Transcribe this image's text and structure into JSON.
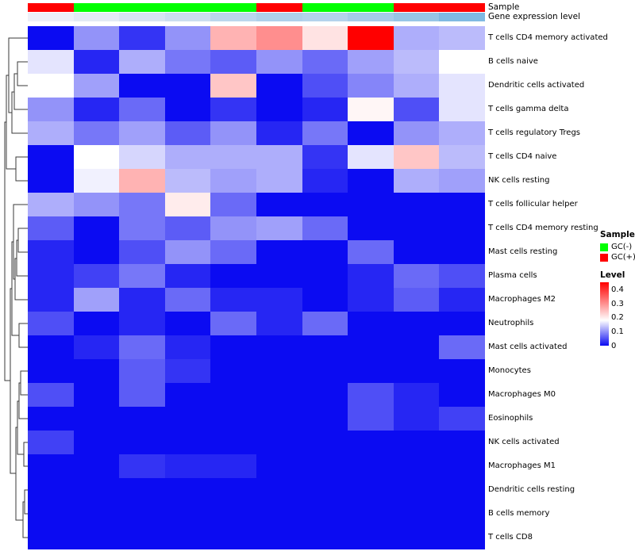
{
  "figure": {
    "annotation_labels": {
      "sample": "Sample",
      "expression": "Gene expression level"
    }
  },
  "legend": {
    "sample": {
      "title": "Sample",
      "items": [
        {
          "label": "GC(-)",
          "color": "#00FF00"
        },
        {
          "label": "GC(+)",
          "color": "#FF0000"
        }
      ]
    },
    "level": {
      "title": "Level",
      "ticks": [
        "0.4",
        "0.3",
        "0.2",
        "0.1",
        "0"
      ]
    }
  },
  "chart_data": {
    "type": "heatmap",
    "title": "",
    "xlabel": "",
    "ylabel": "",
    "n_columns": 10,
    "rows": [
      "T cells CD4 memory activated",
      "B cells naive",
      "Dendritic cells activated",
      "T cells gamma delta",
      "T cells regulatory  Tregs",
      "T cells CD4 naive",
      "NK cells resting",
      "T cells follicular helper",
      "T cells CD4 memory resting",
      "Mast cells resting",
      "Plasma cells",
      "Macrophages M2",
      "Neutrophils",
      "Mast cells activated",
      "Monocytes",
      "Macrophages M0",
      "Eosinophils",
      "NK cells activated",
      "Macrophages M1",
      "Dendritic cells resting",
      "B cells memory",
      "T cells CD8"
    ],
    "column_annotations": {
      "sample": [
        "GC(+)",
        "GC(-)",
        "GC(-)",
        "GC(-)",
        "GC(-)",
        "GC(+)",
        "GC(-)",
        "GC(-)",
        "GC(+)",
        "GC(+)"
      ],
      "gene_expression_colors": [
        "#EDF0F8",
        "#E3EAF5",
        "#D7E4F2",
        "#CBDEF0",
        "#BBD6ED",
        "#AFD0EA",
        "#B4D3EC",
        "#A5CCE9",
        "#97C5E6",
        "#7FB9E2"
      ]
    },
    "values": [
      [
        0.0,
        0.1,
        0.03,
        0.1,
        0.26,
        0.3,
        0.21,
        0.45,
        0.12,
        0.13
      ],
      [
        0.16,
        0.02,
        0.12,
        0.08,
        0.06,
        0.1,
        0.07,
        0.11,
        0.13,
        0.18
      ],
      [
        0.18,
        0.11,
        0.0,
        0.0,
        0.24,
        0.0,
        0.05,
        0.09,
        0.12,
        0.16
      ],
      [
        0.1,
        0.02,
        0.07,
        0.0,
        0.03,
        0.0,
        0.02,
        0.19,
        0.05,
        0.16
      ],
      [
        0.12,
        0.08,
        0.11,
        0.06,
        0.1,
        0.02,
        0.08,
        0.0,
        0.1,
        0.12
      ],
      [
        0.0,
        0.18,
        0.15,
        0.12,
        0.12,
        0.12,
        0.03,
        0.16,
        0.24,
        0.13
      ],
      [
        0.0,
        0.17,
        0.26,
        0.13,
        0.11,
        0.12,
        0.02,
        0.0,
        0.12,
        0.11
      ],
      [
        0.12,
        0.1,
        0.08,
        0.2,
        0.07,
        0.0,
        0.0,
        0.0,
        0.0,
        0.0
      ],
      [
        0.06,
        0.0,
        0.08,
        0.06,
        0.1,
        0.11,
        0.07,
        0.0,
        0.0,
        0.0
      ],
      [
        0.02,
        0.0,
        0.05,
        0.1,
        0.07,
        0.0,
        0.0,
        0.07,
        0.0,
        0.0
      ],
      [
        0.02,
        0.04,
        0.08,
        0.02,
        0.0,
        0.0,
        0.0,
        0.02,
        0.07,
        0.05
      ],
      [
        0.02,
        0.11,
        0.02,
        0.07,
        0.02,
        0.02,
        0.0,
        0.02,
        0.06,
        0.02
      ],
      [
        0.05,
        0.0,
        0.02,
        0.0,
        0.07,
        0.02,
        0.07,
        0.0,
        0.0,
        0.0
      ],
      [
        0.0,
        0.02,
        0.07,
        0.02,
        0.0,
        0.0,
        0.0,
        0.0,
        0.0,
        0.07
      ],
      [
        0.0,
        0.0,
        0.06,
        0.03,
        0.0,
        0.0,
        0.0,
        0.0,
        0.0,
        0.0
      ],
      [
        0.05,
        0.0,
        0.06,
        0.0,
        0.0,
        0.0,
        0.0,
        0.05,
        0.02,
        0.0
      ],
      [
        0.0,
        0.0,
        0.0,
        0.0,
        0.0,
        0.0,
        0.0,
        0.05,
        0.02,
        0.04
      ],
      [
        0.04,
        0.0,
        0.0,
        0.0,
        0.0,
        0.0,
        0.0,
        0.0,
        0.0,
        0.0
      ],
      [
        0.0,
        0.0,
        0.03,
        0.02,
        0.02,
        0.0,
        0.0,
        0.0,
        0.0,
        0.0
      ],
      [
        0.0,
        0.0,
        0.0,
        0.0,
        0.0,
        0.0,
        0.0,
        0.0,
        0.0,
        0.0
      ],
      [
        0.0,
        0.0,
        0.0,
        0.0,
        0.0,
        0.0,
        0.0,
        0.0,
        0.0,
        0.0
      ],
      [
        0.0,
        0.0,
        0.0,
        0.0,
        0.0,
        0.0,
        0.0,
        0.0,
        0.0,
        0.0
      ]
    ],
    "color_scale": {
      "min": 0,
      "mid": 0.18,
      "max": 0.45,
      "min_color": "#0B0BF2",
      "mid_color": "#FFFFFF",
      "max_color": "#FF0000"
    },
    "legend_position": "right",
    "row_dendrogram": true,
    "column_labels_visible": false
  }
}
